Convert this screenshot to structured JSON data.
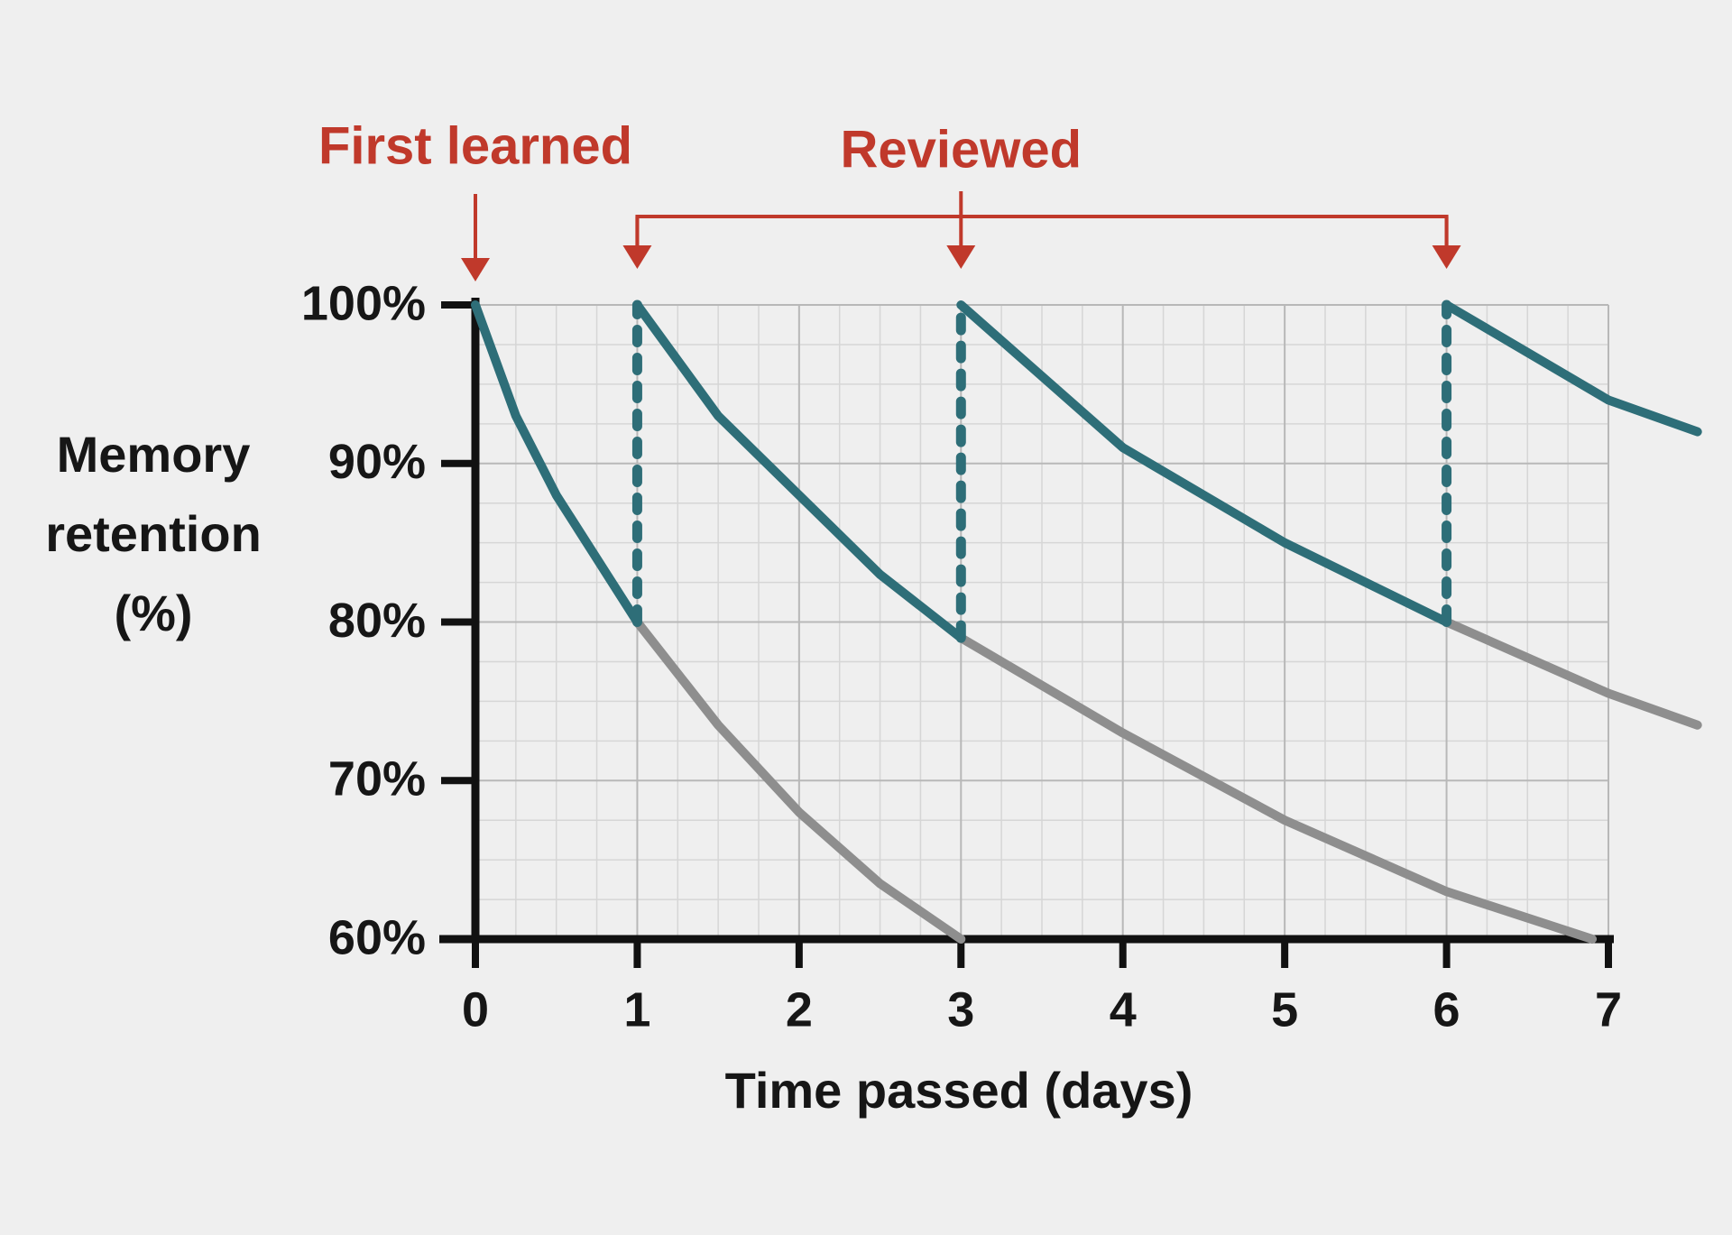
{
  "chart_data": {
    "type": "line",
    "xlabel": "Time passed (days)",
    "ylabel": "Memory retention (%)",
    "annotations": {
      "first": "First learned",
      "review": "Reviewed"
    },
    "xlim": [
      0,
      7
    ],
    "xticks": [
      0,
      1,
      2,
      3,
      4,
      5,
      6,
      7
    ],
    "ylim": [
      60,
      100
    ],
    "yticks": [
      {
        "value": 60,
        "label": "60%"
      },
      {
        "value": 70,
        "label": "70%"
      },
      {
        "value": 80,
        "label": "80%"
      },
      {
        "value": 90,
        "label": "90%"
      },
      {
        "value": 100,
        "label": "100%"
      }
    ],
    "grid": true,
    "series": [
      {
        "color": "#2e6e78",
        "x": [
          0,
          0.25,
          0.5,
          0.75,
          1
        ],
        "values": [
          100,
          93,
          88,
          84,
          80
        ]
      },
      {
        "color": "#8e8e8e",
        "x": [
          1,
          1.5,
          2,
          2.5,
          3
        ],
        "values": [
          80,
          73.5,
          68,
          63.5,
          60
        ]
      },
      {
        "color": "#2e6e78",
        "x": [
          1,
          1.5,
          2,
          2.5,
          3
        ],
        "values": [
          100,
          93,
          88,
          83,
          79
        ]
      },
      {
        "color": "#8e8e8e",
        "x": [
          3,
          4,
          5,
          6,
          6.9
        ],
        "values": [
          79,
          73,
          67.5,
          63,
          60
        ]
      },
      {
        "color": "#2e6e78",
        "x": [
          3,
          4,
          5,
          6
        ],
        "values": [
          100,
          91,
          85,
          80
        ]
      },
      {
        "color": "#8e8e8e",
        "x": [
          6,
          7,
          7.55
        ],
        "values": [
          80,
          75.5,
          73.5
        ]
      },
      {
        "color": "#2e6e78",
        "x": [
          6,
          7,
          7.55
        ],
        "values": [
          100,
          94,
          92
        ]
      },
      {
        "color": "#2e6e78",
        "dashed": true,
        "x": [
          1,
          1
        ],
        "values": [
          80,
          100
        ]
      },
      {
        "color": "#2e6e78",
        "dashed": true,
        "x": [
          3,
          3
        ],
        "values": [
          79,
          100
        ]
      },
      {
        "color": "#2e6e78",
        "dashed": true,
        "x": [
          6,
          6
        ],
        "values": [
          80,
          100
        ]
      }
    ]
  }
}
